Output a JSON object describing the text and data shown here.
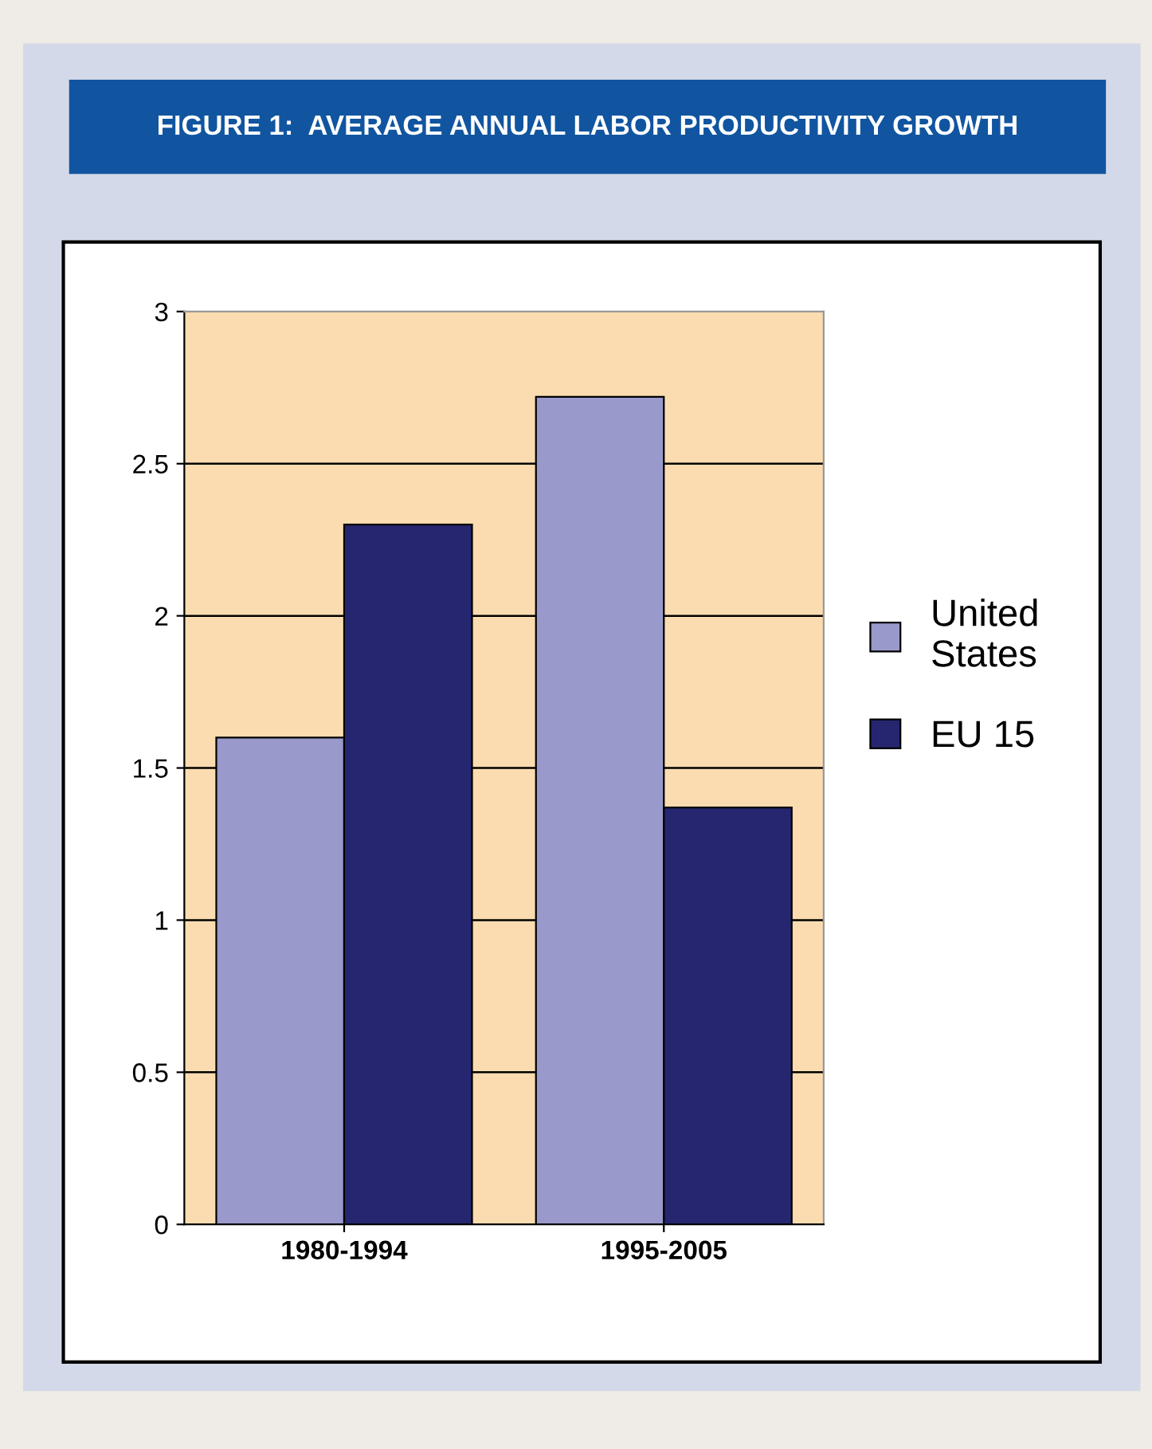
{
  "chart_data": {
    "type": "bar",
    "title": "FIGURE 1:  AVERAGE ANNUAL LABOR PRODUCTIVITY GROWTH",
    "categories": [
      "1980-1994",
      "1995-2005"
    ],
    "series": [
      {
        "name": "United\nStates",
        "color": "#9999cc",
        "values": [
          1.6,
          2.72
        ]
      },
      {
        "name": "EU 15",
        "color": "#262670",
        "values": [
          2.3,
          1.37
        ]
      }
    ],
    "ylim": [
      0,
      3
    ],
    "yticks": [
      0,
      0.5,
      1,
      1.5,
      2,
      2.5,
      3
    ],
    "grid": "y",
    "legend": "right"
  }
}
